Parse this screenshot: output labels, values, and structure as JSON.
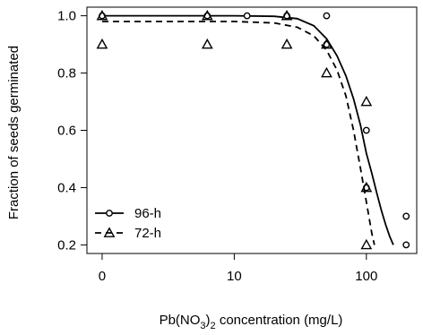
{
  "chart_data": {
    "type": "scatter",
    "x_scale": "log",
    "xlim_display": [
      1,
      200
    ],
    "ylim": [
      0.17,
      1.03
    ],
    "xlabel_parts": {
      "pre": "Pb(NO",
      "sub1": "3",
      "mid": ")",
      "sub2": "2",
      "post": " concentration (mg/L)"
    },
    "ylabel": "Fraction of seeds germinated",
    "x_ticks": [
      {
        "value": 1,
        "label": "0"
      },
      {
        "value": 10,
        "label": "10"
      },
      {
        "value": 100,
        "label": "100"
      }
    ],
    "y_ticks": [
      {
        "value": 0.2,
        "label": "0.2"
      },
      {
        "value": 0.4,
        "label": "0.4"
      },
      {
        "value": 0.6,
        "label": "0.6"
      },
      {
        "value": 0.8,
        "label": "0.8"
      },
      {
        "value": 1.0,
        "label": "1.0"
      }
    ],
    "legend": {
      "position": "bottom-left"
    },
    "series": [
      {
        "name": "96-h",
        "marker": "circle",
        "line": "solid",
        "points": [
          [
            1,
            1.0
          ],
          [
            6.25,
            1.0
          ],
          [
            12.5,
            1.0
          ],
          [
            25,
            1.0
          ],
          [
            50,
            1.0
          ],
          [
            50,
            0.9
          ],
          [
            100,
            0.6
          ],
          [
            100,
            0.4
          ],
          [
            200,
            0.3
          ],
          [
            200,
            0.2
          ]
        ],
        "fit": [
          [
            1,
            1.0
          ],
          [
            10,
            1.0
          ],
          [
            20,
            0.998
          ],
          [
            30,
            0.99
          ],
          [
            40,
            0.965
          ],
          [
            50,
            0.92
          ],
          [
            60,
            0.86
          ],
          [
            70,
            0.79
          ],
          [
            80,
            0.71
          ],
          [
            90,
            0.62
          ],
          [
            100,
            0.52
          ],
          [
            110,
            0.45
          ],
          [
            120,
            0.38
          ],
          [
            130,
            0.32
          ],
          [
            140,
            0.27
          ],
          [
            150,
            0.23
          ],
          [
            160,
            0.2
          ]
        ]
      },
      {
        "name": "72-h",
        "marker": "triangle",
        "line": "dashed",
        "points": [
          [
            1,
            1.0
          ],
          [
            1,
            0.9
          ],
          [
            6.25,
            1.0
          ],
          [
            6.25,
            0.9
          ],
          [
            25,
            1.0
          ],
          [
            25,
            0.9
          ],
          [
            50,
            0.9
          ],
          [
            50,
            0.8
          ],
          [
            100,
            0.7
          ],
          [
            100,
            0.4
          ],
          [
            100,
            0.2
          ]
        ],
        "fit": [
          [
            1,
            0.98
          ],
          [
            10,
            0.98
          ],
          [
            20,
            0.975
          ],
          [
            30,
            0.96
          ],
          [
            40,
            0.93
          ],
          [
            50,
            0.88
          ],
          [
            60,
            0.81
          ],
          [
            70,
            0.72
          ],
          [
            80,
            0.6
          ],
          [
            90,
            0.47
          ],
          [
            100,
            0.35
          ],
          [
            110,
            0.24
          ],
          [
            115,
            0.2
          ]
        ]
      }
    ]
  }
}
